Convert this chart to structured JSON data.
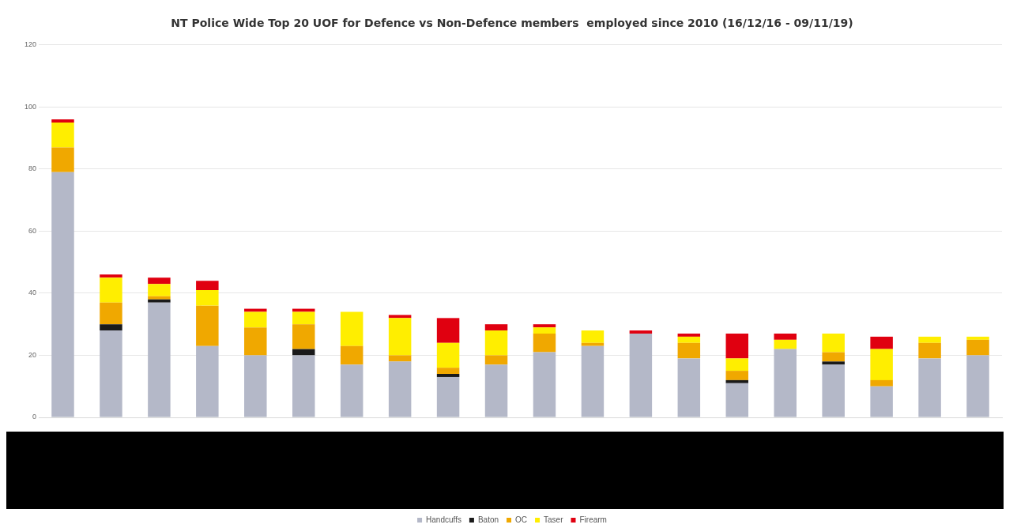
{
  "chart_data": {
    "type": "bar",
    "title": "NT Police Wide Top 20 UOF for Defence vs Non-Defence members  employed since 2010 (16/12/16 - 09/11/19)",
    "categories": [
      null,
      null,
      null,
      null,
      null,
      null,
      null,
      null,
      null,
      null,
      null,
      null,
      null,
      null,
      null,
      null,
      null,
      null,
      null,
      null
    ],
    "stacked": true,
    "series": [
      {
        "name": "Handcuffs",
        "color": "#b4b8c8",
        "values": [
          79,
          28,
          37,
          23,
          20,
          20,
          17,
          18,
          13,
          17,
          21,
          23,
          27,
          19,
          11,
          22,
          17,
          10,
          19,
          20
        ]
      },
      {
        "name": "Baton",
        "color": "#1a1a1a",
        "values": [
          0,
          2,
          1,
          0,
          0,
          2,
          0,
          0,
          1,
          0,
          0,
          0,
          0,
          0,
          1,
          0,
          1,
          0,
          0,
          0
        ]
      },
      {
        "name": "OC",
        "color": "#f0a800",
        "values": [
          8,
          7,
          1,
          13,
          9,
          8,
          6,
          2,
          2,
          3,
          6,
          1,
          0,
          5,
          3,
          0,
          3,
          2,
          5,
          5
        ]
      },
      {
        "name": "Taser",
        "color": "#ffee00",
        "values": [
          8,
          8,
          4,
          5,
          5,
          4,
          11,
          12,
          8,
          8,
          2,
          4,
          0,
          2,
          4,
          3,
          6,
          10,
          2,
          1
        ]
      },
      {
        "name": "Firearm",
        "color": "#e00010",
        "values": [
          1,
          1,
          2,
          3,
          1,
          1,
          0,
          1,
          8,
          2,
          1,
          0,
          1,
          1,
          8,
          2,
          0,
          4,
          0,
          0
        ]
      }
    ],
    "ylim": [
      0,
      120
    ],
    "yticks": [
      0,
      20,
      40,
      60,
      80,
      100,
      120
    ],
    "grid": "y",
    "legend": "bottom"
  }
}
